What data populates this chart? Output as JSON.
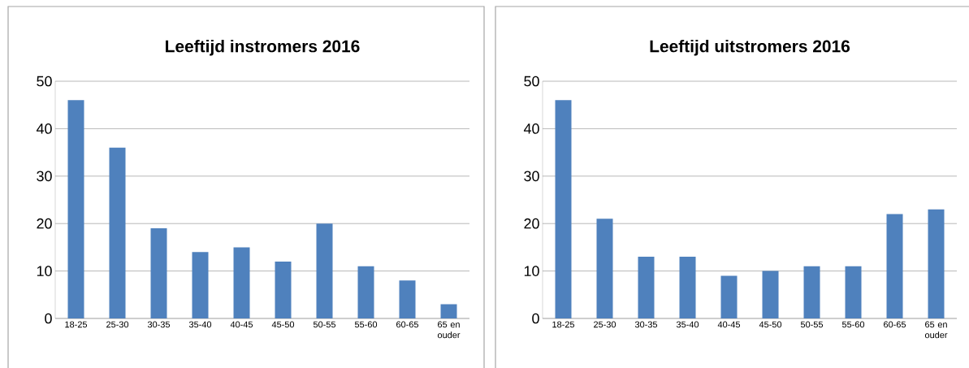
{
  "chart_data": [
    {
      "type": "bar",
      "title": "Leeftijd instromers 2016",
      "categories": [
        "18-25",
        "25-30",
        "30-35",
        "35-40",
        "40-45",
        "45-50",
        "50-55",
        "55-60",
        "60-65",
        "65 en ouder"
      ],
      "values": [
        46,
        36,
        19,
        14,
        15,
        12,
        20,
        11,
        8,
        3
      ],
      "color": "#4f81bd",
      "ylim": [
        0,
        50
      ],
      "yticks": [
        0,
        10,
        20,
        30,
        40,
        50
      ],
      "grid": "y"
    },
    {
      "type": "bar",
      "title": "Leeftijd uitstromers 2016",
      "categories": [
        "18-25",
        "25-30",
        "30-35",
        "35-40",
        "40-45",
        "45-50",
        "50-55",
        "55-60",
        "60-65",
        "65 en ouder"
      ],
      "values": [
        46,
        21,
        13,
        13,
        9,
        10,
        11,
        11,
        22,
        23
      ],
      "color": "#4f81bd",
      "ylim": [
        0,
        50
      ],
      "yticks": [
        0,
        10,
        20,
        30,
        40,
        50
      ],
      "grid": "y"
    }
  ]
}
